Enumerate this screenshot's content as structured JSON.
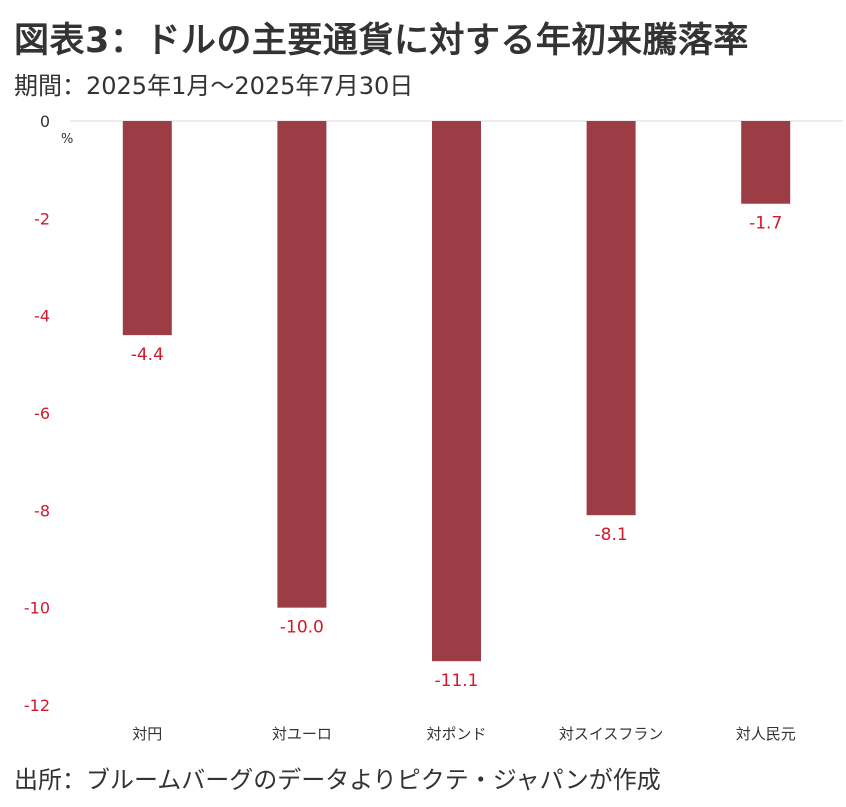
{
  "header": {
    "title": "図表3：ドルの主要通貨に対する年初来騰落率",
    "subtitle": "期間：2025年1月～2025年7月30日"
  },
  "footer": {
    "source": "出所：ブルームバーグのデータよりピクテ・ジャパンが作成"
  },
  "chart_data": {
    "type": "bar",
    "categories": [
      "対円",
      "対ユーロ",
      "対ポンド",
      "対スイスフラン",
      "対人民元"
    ],
    "values": [
      -4.4,
      -10.0,
      -11.1,
      -8.1,
      -1.7
    ],
    "data_labels": [
      "-4.4",
      "-10.0",
      "-11.1",
      "-8.1",
      "-1.7"
    ],
    "ylabel_unit": "%",
    "ylim": [
      -12,
      0
    ],
    "yticks": [
      0,
      -2,
      -4,
      -6,
      -8,
      -10,
      -12
    ],
    "ytick_labels": [
      "0",
      "-2",
      "-4",
      "-6",
      "-8",
      "-10",
      "-12"
    ],
    "grid": false,
    "legend": "none",
    "colors": {
      "bar": "#9c3d46",
      "label": "#d0192b",
      "zero_line": "#d9d9d9"
    }
  }
}
